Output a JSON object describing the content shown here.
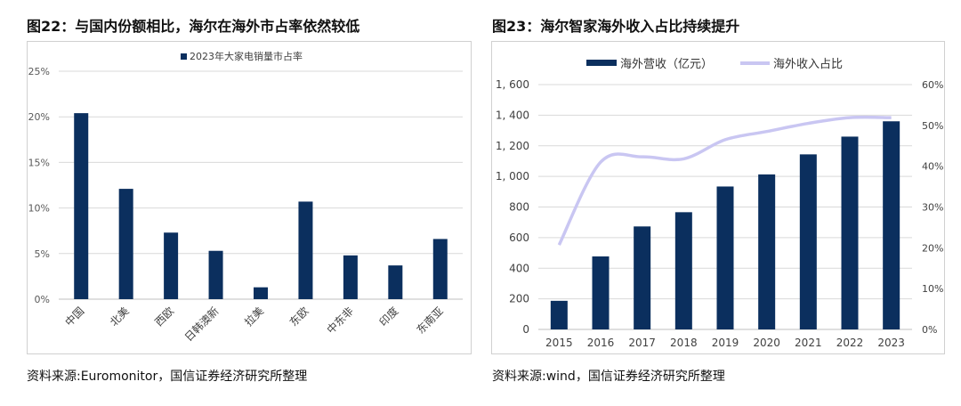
{
  "chart_data": [
    {
      "type": "bar",
      "title": "图22：与国内份额相比，海尔在海外市占率依然较低",
      "legend": "2023年大家电销量市占率",
      "legend_position": "top-center",
      "categories": [
        "中国",
        "北美",
        "西欧",
        "日韩澳新",
        "拉美",
        "东欧",
        "中东非",
        "印度",
        "东南亚"
      ],
      "values": [
        20.4,
        12.1,
        7.3,
        5.3,
        1.3,
        10.7,
        4.8,
        3.7,
        6.6
      ],
      "ylim": [
        0,
        25
      ],
      "yticks": [
        "0%",
        "5%",
        "10%",
        "15%",
        "20%",
        "25%"
      ],
      "grid": true,
      "source": "资料来源:Euromonitor，国信证券经济研究所整理",
      "color": "#0b2f5e"
    },
    {
      "type": "bar+line",
      "title": "图23：海尔智家海外收入占比持续提升",
      "categories": [
        "2015",
        "2016",
        "2017",
        "2018",
        "2019",
        "2020",
        "2021",
        "2022",
        "2023"
      ],
      "series": [
        {
          "name": "海外营收（亿元）",
          "type": "bar",
          "axis": "left",
          "values": [
            187,
            477,
            673,
            766,
            934,
            1013,
            1144,
            1260,
            1360
          ],
          "color": "#0b2f5e"
        },
        {
          "name": "海外收入占比",
          "type": "line",
          "axis": "right",
          "values": [
            20.7,
            41.0,
            42.3,
            41.8,
            46.5,
            48.5,
            50.5,
            51.9,
            51.9
          ],
          "color": "#c9c6f2"
        }
      ],
      "ylim_left": [
        0,
        1600
      ],
      "yticks_left": [
        "0",
        "200",
        "400",
        "600",
        "800",
        "1, 000",
        "1, 200",
        "1, 400",
        "1, 600"
      ],
      "ylim_right": [
        0,
        60
      ],
      "yticks_right": [
        "0%",
        "10%",
        "20%",
        "30%",
        "40%",
        "50%",
        "60%"
      ],
      "legend_position": "top-center",
      "grid": true,
      "source": "资料来源:wind，国信证券经济研究所整理"
    }
  ]
}
